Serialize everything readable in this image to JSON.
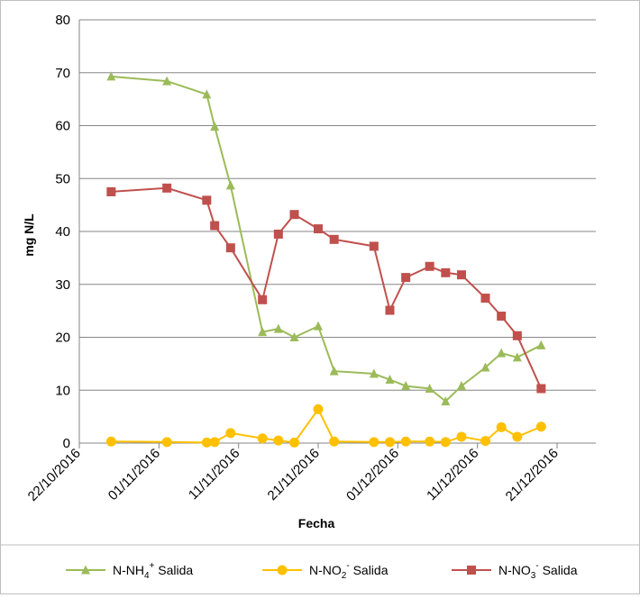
{
  "chart_data": {
    "type": "line",
    "xlabel": "Fecha",
    "ylabel": "mg N/L",
    "ylim": [
      0,
      80
    ],
    "yticks": [
      0,
      10,
      20,
      30,
      40,
      50,
      60,
      70,
      80
    ],
    "xlim": [
      "2016-10-22",
      "2016-12-21"
    ],
    "xticks": [
      "22/10/2016",
      "01/11/2016",
      "11/11/2016",
      "21/11/2016",
      "01/12/2016",
      "11/12/2016",
      "21/12/2016"
    ],
    "grid": "horizontal",
    "legend_position": "bottom",
    "series": [
      {
        "name": "N-NH4+ Salida",
        "label_base": "N-NH",
        "label_sub": "4",
        "label_sup": "+",
        "label_tail": " Salida",
        "color": "#9bbb59",
        "marker": "triangle",
        "x": [
          "2016-10-26",
          "2016-11-02",
          "2016-11-07",
          "2016-11-08",
          "2016-11-10",
          "2016-11-14",
          "2016-11-16",
          "2016-11-18",
          "2016-11-21",
          "2016-11-23",
          "2016-11-28",
          "2016-11-30",
          "2016-12-02",
          "2016-12-05",
          "2016-12-07",
          "2016-12-09",
          "2016-12-12",
          "2016-12-14",
          "2016-12-16",
          "2016-12-19"
        ],
        "y": [
          69.3,
          68.4,
          65.9,
          59.8,
          48.7,
          21.0,
          21.6,
          20.0,
          22.1,
          13.6,
          13.1,
          12.0,
          10.8,
          10.3,
          7.9,
          10.8,
          14.3,
          17.0,
          16.2,
          18.5
        ]
      },
      {
        "name": "N-NO2- Salida",
        "label_base": "N-NO",
        "label_sub": "2",
        "label_sup": "-",
        "label_tail": " Salida",
        "color": "#ffc000",
        "marker": "circle",
        "x": [
          "2016-10-26",
          "2016-11-02",
          "2016-11-07",
          "2016-11-08",
          "2016-11-10",
          "2016-11-14",
          "2016-11-16",
          "2016-11-18",
          "2016-11-21",
          "2016-11-23",
          "2016-11-28",
          "2016-11-30",
          "2016-12-02",
          "2016-12-05",
          "2016-12-07",
          "2016-12-09",
          "2016-12-12",
          "2016-12-14",
          "2016-12-16",
          "2016-12-19"
        ],
        "y": [
          0.3,
          0.2,
          0.1,
          0.2,
          1.9,
          0.9,
          0.5,
          0.1,
          6.4,
          0.3,
          0.2,
          0.2,
          0.3,
          0.3,
          0.2,
          1.2,
          0.4,
          3.0,
          1.2,
          3.1
        ]
      },
      {
        "name": "N-NO3- Salida",
        "label_base": "N-NO",
        "label_sub": "3",
        "label_sup": "-",
        "label_tail": " Salida",
        "color": "#c0504d",
        "marker": "square",
        "x": [
          "2016-10-26",
          "2016-11-02",
          "2016-11-07",
          "2016-11-08",
          "2016-11-10",
          "2016-11-14",
          "2016-11-16",
          "2016-11-18",
          "2016-11-21",
          "2016-11-23",
          "2016-11-28",
          "2016-11-30",
          "2016-12-02",
          "2016-12-05",
          "2016-12-07",
          "2016-12-09",
          "2016-12-12",
          "2016-12-14",
          "2016-12-16",
          "2016-12-19"
        ],
        "y": [
          47.5,
          48.2,
          45.9,
          41.1,
          36.9,
          27.1,
          39.5,
          43.2,
          40.5,
          38.5,
          37.2,
          25.1,
          31.3,
          33.4,
          32.2,
          31.8,
          27.4,
          24.0,
          20.3,
          10.3
        ]
      }
    ]
  }
}
